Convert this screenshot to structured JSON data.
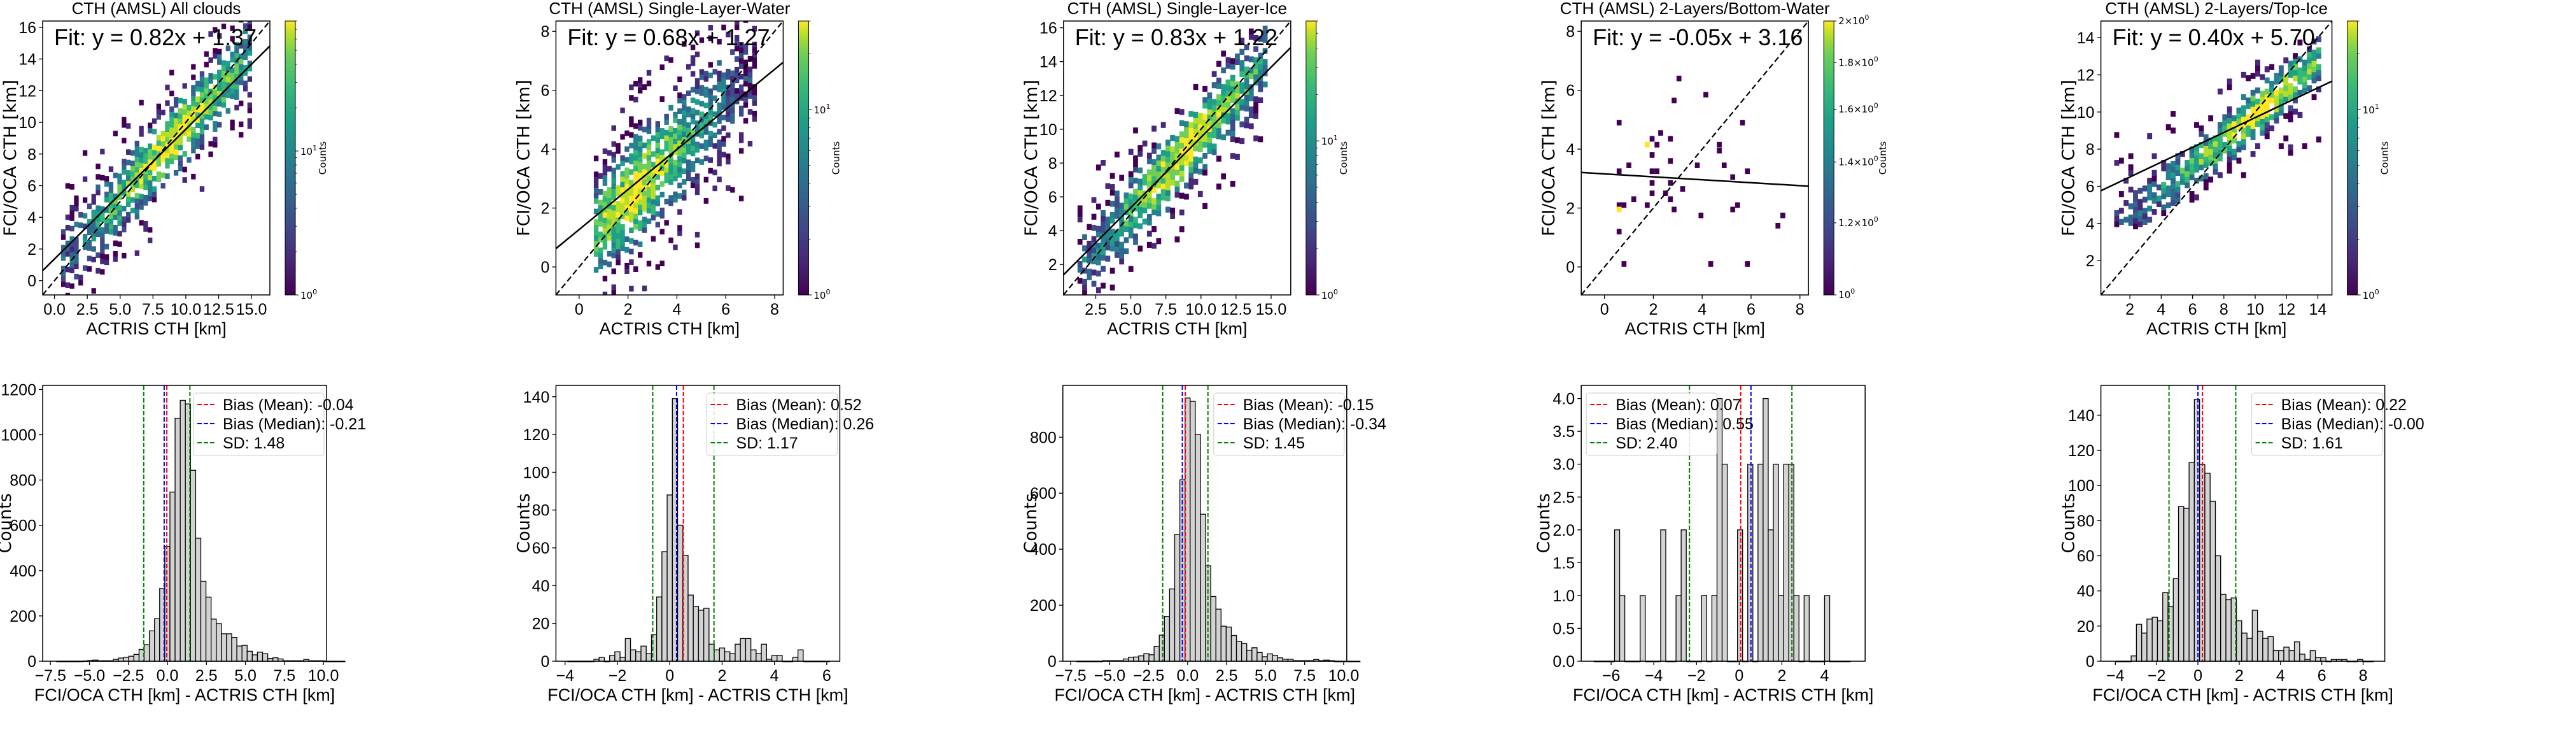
{
  "figure": {
    "colorbar_label": "Counts",
    "scatter_xlabel": "ACTRIS CTH [km]",
    "scatter_ylabel": "FCI/OCA CTH [km]",
    "hist_xlabel": "FCI/OCA CTH [km] - ACTRIS CTH [km]",
    "hist_ylabel": "Counts",
    "colors": {
      "mean": "#ff0000",
      "median": "#0000ff",
      "sd": "#008000",
      "bar_fill": "#d3d3d3",
      "bar_edge": "#000000"
    }
  },
  "chart_data": [
    {
      "type": "heatmap",
      "panel": "top-1",
      "title": "CTH (AMSL) All clouds",
      "fit_text": "Fit: y = 0.82x + 1.37",
      "fit": {
        "slope": 0.82,
        "intercept": 1.37
      },
      "reference_line": "1:1 dashed",
      "xlabel": "ACTRIS CTH [km]",
      "ylabel": "FCI/OCA CTH [km]",
      "xlim": [
        -0.9,
        16.4
      ],
      "ylim": [
        -0.9,
        16.4
      ],
      "xticks": [
        "0.0",
        "2.5",
        "5.0",
        "7.5",
        "10.0",
        "12.5",
        "15.0"
      ],
      "xtick_values": [
        0,
        2.5,
        5,
        7.5,
        10,
        12.5,
        15
      ],
      "yticks": [
        "0",
        "2",
        "4",
        "6",
        "8",
        "10",
        "12",
        "14",
        "16"
      ],
      "ytick_values": [
        0,
        2,
        4,
        6,
        8,
        10,
        12,
        14,
        16
      ],
      "colorbar": {
        "scale": "log",
        "min": 1,
        "max": 80,
        "ticks": [
          "10^0",
          "10^1"
        ]
      },
      "density": {
        "x_range": [
          0.5,
          14.8
        ],
        "spread": 1.5,
        "peak_x": 8.8,
        "bin": 0.33
      }
    },
    {
      "type": "heatmap",
      "panel": "top-2",
      "title": "CTH (AMSL) Single-Layer-Water",
      "fit_text": "Fit: y = 0.68x + 1.27",
      "fit": {
        "slope": 0.68,
        "intercept": 1.27
      },
      "reference_line": "1:1 dashed",
      "xlabel": "ACTRIS CTH [km]",
      "ylabel": "FCI/OCA CTH [km]",
      "xlim": [
        -0.95,
        8.35
      ],
      "ylim": [
        -0.95,
        8.35
      ],
      "xticks": [
        "0",
        "2",
        "4",
        "6",
        "8"
      ],
      "xtick_values": [
        0,
        2,
        4,
        6,
        8
      ],
      "yticks": [
        "0",
        "2",
        "4",
        "6",
        "8"
      ],
      "ytick_values": [
        0,
        2,
        4,
        6,
        8
      ],
      "colorbar": {
        "scale": "log",
        "min": 1,
        "max": 30,
        "ticks": [
          "10^0",
          "10^1"
        ]
      },
      "density": {
        "x_range": [
          0.6,
          7.2
        ],
        "spread": 1.2,
        "peak_x": 2.3,
        "bin": 0.18
      }
    },
    {
      "type": "heatmap",
      "panel": "top-3",
      "title": "CTH (AMSL) Single-Layer-Ice",
      "fit_text": "Fit: y = 0.83x + 1.22",
      "fit": {
        "slope": 0.83,
        "intercept": 1.22
      },
      "reference_line": "1:1 dashed",
      "xlabel": "ACTRIS CTH [km]",
      "ylabel": "FCI/OCA CTH [km]",
      "xlim": [
        0.2,
        16.4
      ],
      "ylim": [
        0.2,
        16.4
      ],
      "xticks": [
        "2.5",
        "5.0",
        "7.5",
        "10.0",
        "12.5",
        "15.0"
      ],
      "xtick_values": [
        2.5,
        5,
        7.5,
        10,
        12.5,
        15
      ],
      "yticks": [
        "2",
        "4",
        "6",
        "8",
        "10",
        "12",
        "14",
        "16"
      ],
      "ytick_values": [
        2,
        4,
        6,
        8,
        10,
        12,
        14,
        16
      ],
      "colorbar": {
        "scale": "log",
        "min": 1,
        "max": 60,
        "ticks": [
          "10^0",
          "10^1"
        ]
      },
      "density": {
        "x_range": [
          1.2,
          14.6
        ],
        "spread": 1.45,
        "peak_x": 8.8,
        "bin": 0.33
      }
    },
    {
      "type": "heatmap",
      "panel": "top-4",
      "title": "CTH (AMSL) 2-Layers/Bottom-Water",
      "fit_text": "Fit: y = -0.05x + 3.16",
      "fit": {
        "slope": -0.05,
        "intercept": 3.16
      },
      "reference_line": "1:1 dashed",
      "xlabel": "ACTRIS CTH [km]",
      "ylabel": "FCI/OCA CTH [km]",
      "xlim": [
        -0.95,
        8.35
      ],
      "ylim": [
        -0.95,
        8.35
      ],
      "xticks": [
        "0",
        "2",
        "4",
        "6",
        "8"
      ],
      "xtick_values": [
        0,
        2,
        4,
        6,
        8
      ],
      "yticks": [
        "0",
        "2",
        "4",
        "6",
        "8"
      ],
      "ytick_values": [
        0,
        2,
        4,
        6,
        8
      ],
      "colorbar": {
        "scale": "log",
        "min": 1,
        "max": 2,
        "ticks": [
          "10^0",
          "1.2×10^0",
          "1.4×10^0",
          "1.6×10^0",
          "1.8×10^0",
          "2×10^0"
        ]
      },
      "cells": [
        [
          0.6,
          4.9,
          1
        ],
        [
          0.6,
          3.25,
          1
        ],
        [
          0.6,
          2.1,
          1
        ],
        [
          0.8,
          2.1,
          1
        ],
        [
          0.6,
          1.95,
          2
        ],
        [
          0.6,
          1.2,
          1
        ],
        [
          0.8,
          0.1,
          1
        ],
        [
          1.0,
          3.45,
          1
        ],
        [
          1.2,
          2.3,
          1
        ],
        [
          1.75,
          4.15,
          2
        ],
        [
          1.75,
          2.1,
          1
        ],
        [
          1.95,
          4.35,
          1
        ],
        [
          1.95,
          3.8,
          1
        ],
        [
          1.95,
          3.25,
          1
        ],
        [
          2.15,
          3.25,
          1
        ],
        [
          1.95,
          2.85,
          1
        ],
        [
          1.95,
          2.5,
          1
        ],
        [
          2.15,
          4.15,
          1
        ],
        [
          2.3,
          4.55,
          1
        ],
        [
          2.5,
          2.5,
          1
        ],
        [
          2.7,
          4.35,
          1
        ],
        [
          2.7,
          3.6,
          1
        ],
        [
          2.7,
          2.85,
          1
        ],
        [
          2.7,
          2.3,
          1
        ],
        [
          2.85,
          5.65,
          1
        ],
        [
          2.85,
          1.95,
          1
        ],
        [
          3.05,
          6.4,
          1
        ],
        [
          3.2,
          2.65,
          1
        ],
        [
          3.8,
          3.45,
          1
        ],
        [
          3.95,
          1.75,
          1
        ],
        [
          4.15,
          5.85,
          1
        ],
        [
          4.35,
          0.1,
          1
        ],
        [
          4.7,
          4.15,
          1
        ],
        [
          4.7,
          3.95,
          1
        ],
        [
          4.9,
          3.45,
          1
        ],
        [
          5.25,
          3.05,
          1
        ],
        [
          5.25,
          1.95,
          1
        ],
        [
          5.45,
          2.1,
          1
        ],
        [
          5.65,
          4.9,
          1
        ],
        [
          5.85,
          3.25,
          1
        ],
        [
          5.85,
          0.1,
          1
        ],
        [
          7.1,
          1.4,
          1
        ],
        [
          7.3,
          1.75,
          1
        ]
      ]
    },
    {
      "type": "heatmap",
      "panel": "top-5",
      "title": "CTH (AMSL) 2-Layers/Top-Ice",
      "fit_text": "Fit: y = 0.40x + 5.70",
      "fit": {
        "slope": 0.4,
        "intercept": 5.7
      },
      "reference_line": "1:1 dashed",
      "xlabel": "ACTRIS CTH [km]",
      "ylabel": "FCI/OCA CTH [km]",
      "xlim": [
        0.15,
        14.9
      ],
      "ylim": [
        0.15,
        14.9
      ],
      "xticks": [
        "2",
        "4",
        "6",
        "8",
        "10",
        "12",
        "14"
      ],
      "xtick_values": [
        2,
        4,
        6,
        8,
        10,
        12,
        14
      ],
      "yticks": [
        "2",
        "4",
        "6",
        "8",
        "10",
        "12",
        "14"
      ],
      "ytick_values": [
        2,
        4,
        6,
        8,
        10,
        12,
        14
      ],
      "colorbar": {
        "scale": "log",
        "min": 1,
        "max": 30,
        "ticks": [
          "10^0",
          "10^1"
        ]
      },
      "density": {
        "x_range": [
          1.0,
          14.0
        ],
        "spread": 0.9,
        "peak_x": 10.0,
        "bin": 0.3
      }
    },
    {
      "type": "bar",
      "panel": "bottom-1",
      "xlabel": "FCI/OCA CTH [km] - ACTRIS CTH [km]",
      "ylabel": "Counts",
      "xlim": [
        -8.0,
        10.2
      ],
      "ylim": [
        0,
        1218
      ],
      "xticks": [
        "−7.5",
        "−5.0",
        "−2.5",
        "0.0",
        "2.5",
        "5.0",
        "7.5",
        "10.0"
      ],
      "xtick_values": [
        -7.5,
        -5,
        -2.5,
        0,
        2.5,
        5,
        7.5,
        10
      ],
      "yticks": [
        "0",
        "200",
        "400",
        "600",
        "800",
        "1000",
        "1200"
      ],
      "ytick_values": [
        0,
        200,
        400,
        600,
        800,
        1000,
        1200
      ],
      "bin_start": -7.1,
      "bin_width": 0.33,
      "values": [
        0,
        0,
        0,
        0,
        0,
        1,
        3,
        5,
        2,
        2,
        2,
        8,
        14,
        17,
        22,
        30,
        52,
        73,
        134,
        188,
        321,
        507,
        747,
        1073,
        1152,
        1136,
        843,
        543,
        353,
        283,
        186,
        166,
        121,
        121,
        105,
        67,
        70,
        44,
        28,
        40,
        33,
        12,
        15,
        10,
        2,
        2,
        2,
        2,
        8,
        2,
        2,
        2,
        0,
        0,
        0,
        0
      ],
      "lines": {
        "mean": -0.04,
        "median": -0.21,
        "sd_low": -1.52,
        "sd_high": 1.44
      },
      "legend": [
        {
          "label": "Bias (Mean): -0.04",
          "color": "#ff0000"
        },
        {
          "label": "Bias (Median): -0.21",
          "color": "#0000ff"
        },
        {
          "label": "SD: 1.48",
          "color": "#008000"
        }
      ],
      "legend_position": "top-right"
    },
    {
      "type": "bar",
      "panel": "bottom-2",
      "xlabel": "FCI/OCA CTH [km] - ACTRIS CTH [km]",
      "ylabel": "Counts",
      "xlim": [
        -4.35,
        6.5
      ],
      "ylim": [
        0,
        146
      ],
      "xticks": [
        "−4",
        "−2",
        "0",
        "2",
        "4",
        "6"
      ],
      "xtick_values": [
        -4,
        -2,
        0,
        2,
        4,
        6
      ],
      "yticks": [
        "0",
        "20",
        "40",
        "60",
        "80",
        "100",
        "120",
        "140"
      ],
      "ytick_values": [
        0,
        20,
        40,
        60,
        80,
        100,
        120,
        140
      ],
      "bin_start": -3.9,
      "bin_width": 0.2,
      "values": [
        0,
        0,
        0,
        0,
        0,
        1,
        2,
        0,
        3,
        5,
        2,
        12,
        6,
        5,
        8,
        4,
        14,
        34,
        58,
        88,
        139,
        72,
        56,
        35,
        29,
        27,
        28,
        9,
        6,
        7,
        5,
        4,
        9,
        12,
        12,
        6,
        4,
        9,
        1,
        3,
        3,
        0,
        0,
        2,
        6,
        0,
        0,
        0,
        0,
        0
      ],
      "lines": {
        "mean": 0.52,
        "median": 0.26,
        "sd_low": -0.65,
        "sd_high": 1.69
      },
      "legend": [
        {
          "label": "Bias (Mean): 0.52",
          "color": "#ff0000"
        },
        {
          "label": "Bias (Median): 0.26",
          "color": "#0000ff"
        },
        {
          "label": "SD: 1.17",
          "color": "#008000"
        }
      ],
      "legend_position": "top-right"
    },
    {
      "type": "bar",
      "panel": "bottom-3",
      "xlabel": "FCI/OCA CTH [km] - ACTRIS CTH [km]",
      "ylabel": "Counts",
      "xlim": [
        -8.0,
        10.2
      ],
      "ylim": [
        0,
        985
      ],
      "xticks": [
        "−7.5",
        "−5.0",
        "−2.5",
        "0.0",
        "2.5",
        "5.0",
        "7.5",
        "10.0"
      ],
      "xtick_values": [
        -7.5,
        -5,
        -2.5,
        0,
        2.5,
        5,
        7.5,
        10
      ],
      "yticks": [
        "0",
        "200",
        "400",
        "600",
        "800"
      ],
      "ytick_values": [
        0,
        200,
        400,
        600,
        800
      ],
      "bin_start": -7.1,
      "bin_width": 0.33,
      "values": [
        0,
        0,
        0,
        0,
        0,
        2,
        2,
        2,
        2,
        8,
        14,
        15,
        19,
        27,
        23,
        53,
        93,
        160,
        258,
        453,
        648,
        940,
        928,
        810,
        525,
        341,
        231,
        186,
        125,
        122,
        92,
        70,
        63,
        39,
        48,
        31,
        16,
        26,
        21,
        12,
        7,
        7,
        2,
        2,
        2,
        2,
        6,
        2,
        4,
        2,
        0,
        0,
        0,
        0,
        0
      ],
      "lines": {
        "mean": -0.15,
        "median": -0.34,
        "sd_low": -1.6,
        "sd_high": 1.3
      },
      "legend": [
        {
          "label": "Bias (Mean): -0.15",
          "color": "#ff0000"
        },
        {
          "label": "Bias (Median): -0.34",
          "color": "#0000ff"
        },
        {
          "label": "SD: 1.45",
          "color": "#008000"
        }
      ],
      "legend_position": "top-right"
    },
    {
      "type": "bar",
      "panel": "bottom-4",
      "xlabel": "FCI/OCA CTH [km] - ACTRIS CTH [km]",
      "ylabel": "Counts",
      "xlim": [
        -7.4,
        5.9
      ],
      "ylim": [
        0,
        4.2
      ],
      "xticks": [
        "−6",
        "−4",
        "−2",
        "0",
        "2",
        "4"
      ],
      "xtick_values": [
        -6,
        -4,
        -2,
        0,
        2,
        4
      ],
      "yticks": [
        "0.0",
        "0.5",
        "1.0",
        "1.5",
        "2.0",
        "2.5",
        "3.0",
        "3.5",
        "4.0"
      ],
      "ytick_values": [
        0,
        0.5,
        1,
        1.5,
        2,
        2.5,
        3,
        3.5,
        4
      ],
      "bin_start": -6.8,
      "bin_width": 0.24,
      "values": [
        0,
        0,
        0,
        0,
        2,
        1,
        0,
        0,
        0,
        1,
        0,
        0,
        0,
        2,
        0,
        0,
        1,
        2,
        0,
        0,
        0,
        1,
        0,
        1,
        4,
        3,
        0,
        0,
        2,
        0,
        3,
        0,
        3,
        4,
        2,
        3,
        1,
        3,
        3,
        1,
        0,
        1,
        0,
        0,
        0,
        1,
        0,
        0,
        0,
        0
      ],
      "lines": {
        "mean": 0.07,
        "median": 0.55,
        "sd_low": -2.33,
        "sd_high": 2.47
      },
      "legend": [
        {
          "label": "Bias (Mean): 0.07",
          "color": "#ff0000"
        },
        {
          "label": "Bias (Median): 0.55",
          "color": "#0000ff"
        },
        {
          "label": "SD: 2.40",
          "color": "#008000"
        }
      ],
      "legend_position": "top-left"
    },
    {
      "type": "bar",
      "panel": "bottom-5",
      "xlabel": "FCI/OCA CTH [km] - ACTRIS CTH [km]",
      "ylabel": "Counts",
      "xlim": [
        -4.7,
        9.05
      ],
      "ylim": [
        0,
        157
      ],
      "xticks": [
        "−4",
        "−2",
        "0",
        "2",
        "4",
        "6",
        "8"
      ],
      "xtick_values": [
        -4,
        -2,
        0,
        2,
        4,
        6,
        8
      ],
      "yticks": [
        "0",
        "20",
        "40",
        "60",
        "80",
        "100",
        "120",
        "140"
      ],
      "ytick_values": [
        0,
        20,
        40,
        60,
        80,
        100,
        120,
        140
      ],
      "bin_start": -4.0,
      "bin_width": 0.255,
      "values": [
        0,
        0,
        0,
        3,
        21,
        16,
        24,
        25,
        23,
        39,
        31,
        47,
        88,
        87,
        113,
        149,
        112,
        107,
        91,
        60,
        38,
        35,
        36,
        23,
        16,
        13,
        29,
        17,
        13,
        14,
        6,
        6,
        8,
        6,
        11,
        4,
        1,
        6,
        2,
        2,
        0,
        1,
        1,
        1,
        0,
        0,
        1,
        0,
        0
      ],
      "lines": {
        "mean": 0.22,
        "median": 0.0,
        "sd_low": -1.4,
        "sd_high": 1.83
      },
      "legend": [
        {
          "label": "Bias (Mean): 0.22",
          "color": "#ff0000"
        },
        {
          "label": "Bias (Median): -0.00",
          "color": "#0000ff"
        },
        {
          "label": "SD: 1.61",
          "color": "#008000"
        }
      ],
      "legend_position": "top-right"
    }
  ]
}
